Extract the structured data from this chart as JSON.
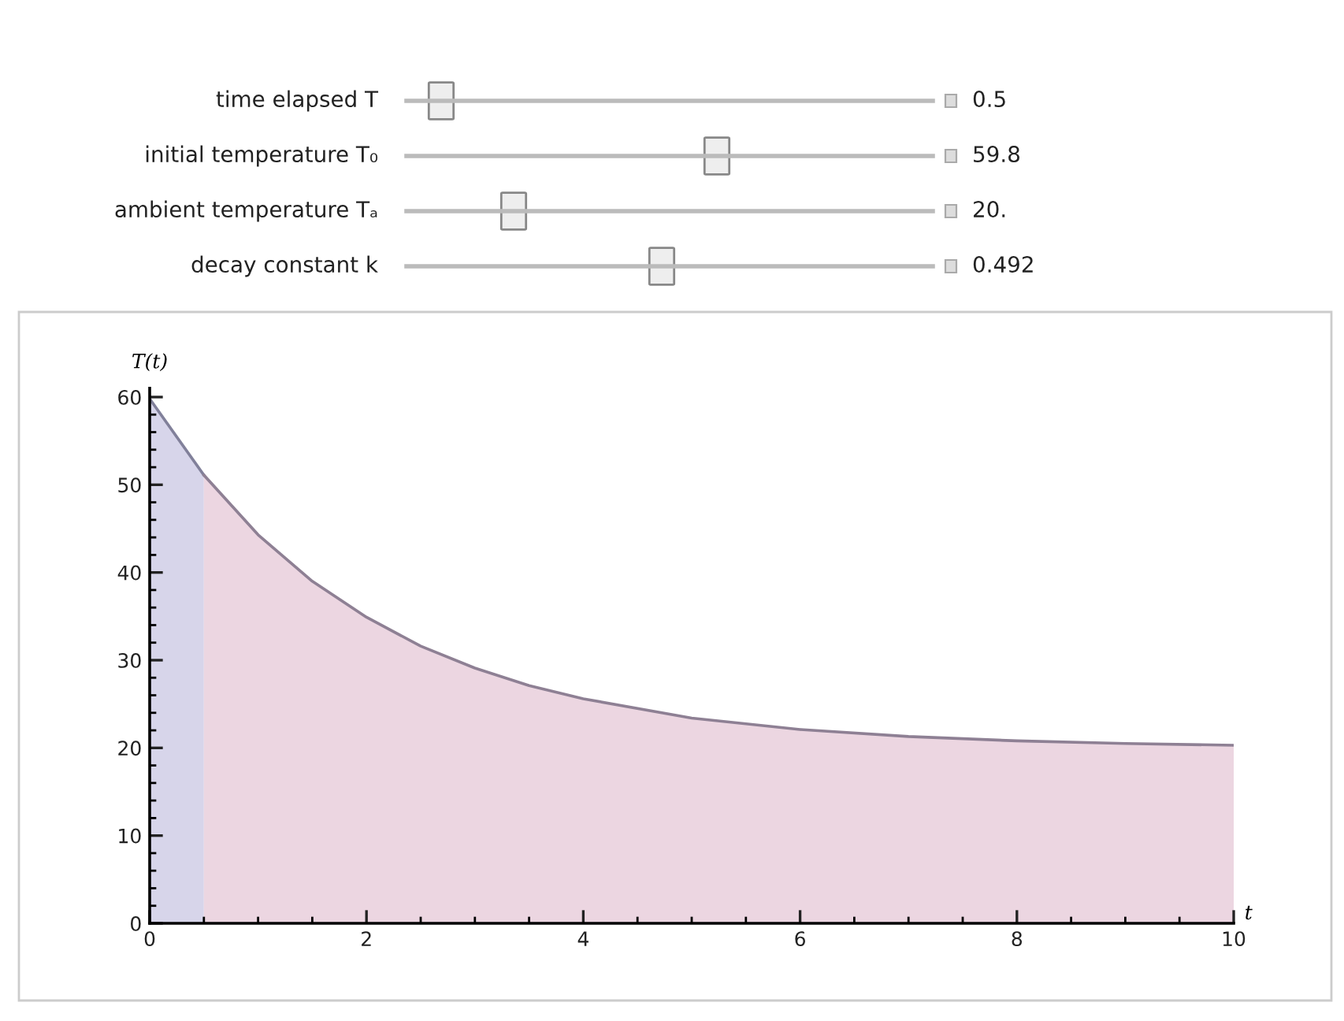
{
  "chart_data": {
    "type": "area",
    "xlabel": "t",
    "ylabel": "T(t)",
    "annotations": [
      "time elapsed T",
      "0.5",
      "initial temperature T₀",
      "59.8",
      "ambient temperature Tₐ",
      "20.",
      "decay constant k",
      "0.492"
    ],
    "series": [
      {
        "color": "#d7d5ea",
        "x": [
          0,
          0.5
        ],
        "values": [
          59.8,
          51.1
        ]
      },
      {
        "color": "#ecd6e1",
        "x": [
          0.5,
          1,
          1.5,
          2,
          2.5,
          3,
          3.5,
          4,
          5,
          6,
          7,
          8,
          9,
          10
        ],
        "values": [
          51.1,
          44.3,
          39.0,
          34.9,
          31.6,
          29.1,
          27.1,
          25.6,
          23.4,
          22.1,
          21.3,
          20.8,
          20.5,
          20.3
        ]
      }
    ],
    "xlim": [
      0,
      10
    ],
    "ylim": [
      0,
      61
    ],
    "xticks": [
      0,
      2,
      4,
      6,
      8,
      10
    ],
    "yticks": [
      0,
      10,
      20,
      30,
      40,
      50,
      60
    ],
    "grid": false,
    "legend": false
  }
}
